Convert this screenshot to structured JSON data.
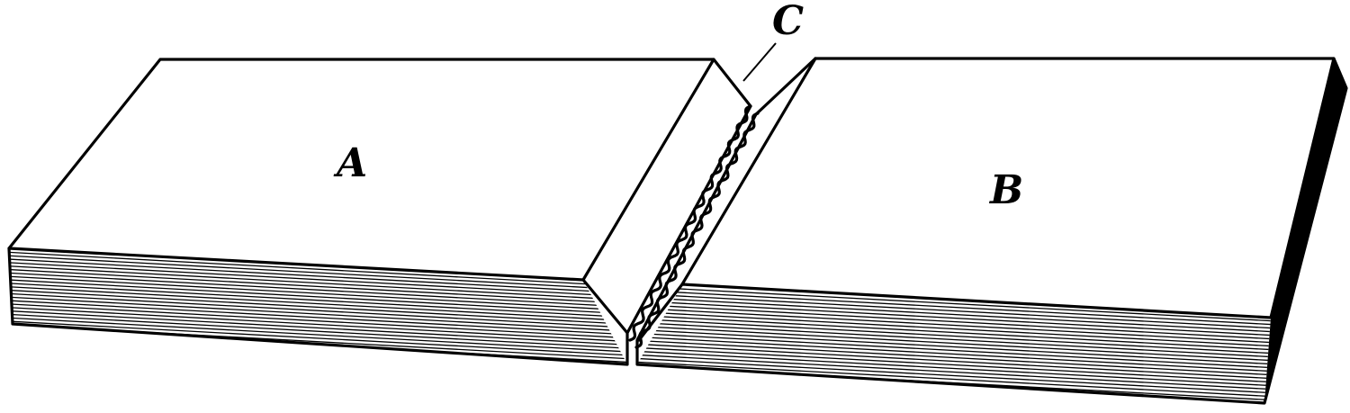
{
  "diagram": {
    "labels": {
      "a": "A",
      "b": "B",
      "c": "C"
    },
    "colors": {
      "ink": "#000000",
      "paper": "#ffffff"
    }
  }
}
